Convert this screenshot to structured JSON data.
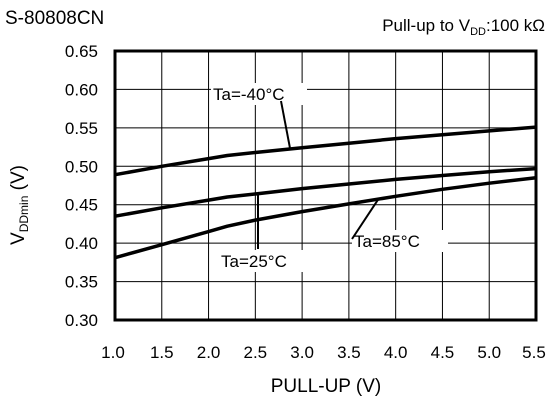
{
  "chart_data": {
    "type": "line",
    "title": "S-80808CN",
    "subtitle": {
      "prefix": "Pull-up to V",
      "sub": "DD",
      "suffix": ":100 kΩ"
    },
    "xlabel": "PULL-UP (V)",
    "ylabel": {
      "prefix": "V",
      "sub": "DDmin",
      "suffix": " (V)"
    },
    "xlim": [
      1.0,
      5.5
    ],
    "ylim": [
      0.3,
      0.65
    ],
    "x_ticks": [
      "1.0",
      "1.5",
      "2.0",
      "2.5",
      "3.0",
      "3.5",
      "4.0",
      "4.5",
      "5.0",
      "5.5"
    ],
    "y_ticks": [
      "0.30",
      "0.35",
      "0.40",
      "0.45",
      "0.50",
      "0.55",
      "0.60",
      "0.65"
    ],
    "grid": true,
    "series": [
      {
        "name": "Ta=-40°C",
        "x": [
          1.0,
          1.5,
          2.0,
          2.2,
          2.5,
          3.0,
          3.5,
          4.0,
          4.5,
          5.0,
          5.5
        ],
        "y": [
          0.489,
          0.5,
          0.51,
          0.514,
          0.518,
          0.524,
          0.53,
          0.536,
          0.541,
          0.546,
          0.551
        ]
      },
      {
        "name": "Ta=25°C",
        "x": [
          1.0,
          1.5,
          2.0,
          2.2,
          2.5,
          3.0,
          3.5,
          4.0,
          4.5,
          5.0,
          5.5
        ],
        "y": [
          0.435,
          0.446,
          0.456,
          0.46,
          0.464,
          0.471,
          0.477,
          0.483,
          0.488,
          0.493,
          0.497
        ]
      },
      {
        "name": "Ta=85°C",
        "x": [
          1.0,
          1.5,
          2.0,
          2.2,
          2.5,
          3.0,
          3.5,
          4.0,
          4.5,
          5.0,
          5.5
        ],
        "y": [
          0.381,
          0.398,
          0.415,
          0.422,
          0.43,
          0.441,
          0.451,
          0.461,
          0.47,
          0.478,
          0.485
        ]
      }
    ]
  }
}
